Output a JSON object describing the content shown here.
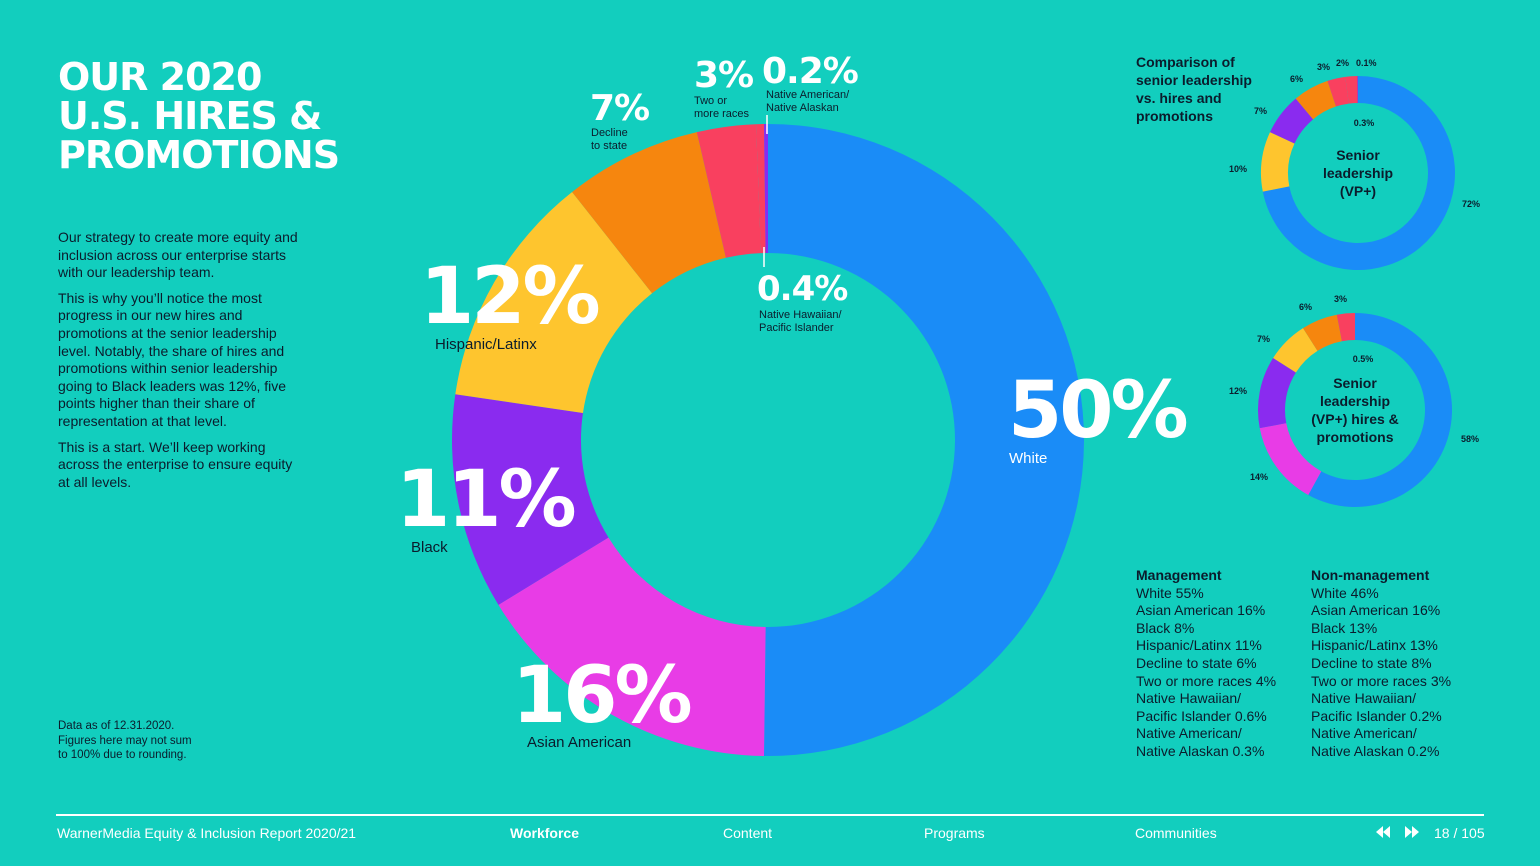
{
  "page": {
    "title_lines": [
      "OUR 2020",
      "U.S. HIRES &",
      "PROMOTIONS"
    ],
    "intro": [
      "Our strategy to create more equity and inclusion across our enterprise starts with our leadership team.",
      "This is why you’ll notice the most progress in our new hires and promotions at the senior leadership level. Notably, the share of hires and promotions within senior leadership going to Black leaders was 12%, five points higher than their share of representation at that level.",
      "This is a start. We’ll keep working across the enterprise to ensure equity at all levels."
    ],
    "note": [
      "Data as of 12.31.2020.",
      "Figures here may not sum",
      "to 100% due to rounding."
    ]
  },
  "colors": {
    "background": "#12CEBE",
    "white_cat": "#1A8CF7",
    "asian": "#E83CE6",
    "black": "#8A2BEF",
    "hispanic": "#FEC52E",
    "decline": "#F6860E",
    "two_or_more": "#F9405F",
    "native_american": "#8A2BEF",
    "native_hawaiian": "#F9405F"
  },
  "chart_data": [
    {
      "type": "pie",
      "variant": "donut",
      "series": [
        {
          "label": "White",
          "value": 50,
          "display": "50%"
        },
        {
          "label": "Asian American",
          "value": 16,
          "display": "16%"
        },
        {
          "label": "Black",
          "value": 11,
          "display": "11%"
        },
        {
          "label": "Hispanic/Latinx",
          "value": 12,
          "display": "12%"
        },
        {
          "label": "Decline to state",
          "value": 7,
          "display": "7%"
        },
        {
          "label": "Two or more races",
          "value": 3,
          "display": "3%"
        },
        {
          "label": "Native Hawaiian/ Pacific Islander",
          "value": 0.4,
          "display": "0.4%"
        },
        {
          "label": "Native American/ Native Alaskan",
          "value": 0.2,
          "display": "0.2%"
        }
      ]
    },
    {
      "type": "pie",
      "variant": "donut",
      "title": "Senior leadership (VP+)",
      "title_lines": [
        "Senior",
        "leadership",
        "(VP+)"
      ],
      "heading_lines": [
        "Comparison of",
        "senior leadership",
        "vs. hires and",
        "promotions"
      ],
      "series": [
        {
          "label": "White",
          "value": 72,
          "display": "72%"
        },
        {
          "label": "Asian American",
          "value": 0,
          "display": ""
        },
        {
          "label": "Hispanic/Latinx",
          "value": 10,
          "display": "10%"
        },
        {
          "label": "Black",
          "value": 7,
          "display": "7%"
        },
        {
          "label": "Decline to state",
          "value": 6,
          "display": "6%"
        },
        {
          "label": "Two or more races",
          "value": 3,
          "display": "3%"
        },
        {
          "label": "Native Hawaiian/ Pacific Islander",
          "value": 2,
          "display": "2%"
        },
        {
          "label": "Native American/ Native Alaskan",
          "value": 0.1,
          "display": "0.1%"
        }
      ],
      "inner_note": "0.3%"
    },
    {
      "type": "pie",
      "variant": "donut",
      "title": "Senior leadership (VP+) hires & promotions",
      "title_lines": [
        "Senior",
        "leadership",
        "(VP+) hires &",
        "promotions"
      ],
      "series": [
        {
          "label": "White",
          "value": 58,
          "display": "58%"
        },
        {
          "label": "Asian American",
          "value": 14,
          "display": "14%"
        },
        {
          "label": "Black",
          "value": 12,
          "display": "12%"
        },
        {
          "label": "Hispanic/Latinx",
          "value": 7,
          "display": "7%"
        },
        {
          "label": "Decline to state",
          "value": 6,
          "display": "6%"
        },
        {
          "label": "Two or more races",
          "value": 3,
          "display": "3%"
        }
      ],
      "inner_note": "0.5%"
    }
  ],
  "main_labels": {
    "p50": "50%",
    "white": "White",
    "p16": "16%",
    "asian": "Asian American",
    "p11": "11%",
    "black": "Black",
    "p12": "12%",
    "hispanic": "Hispanic/Latinx",
    "p7": "7%",
    "decline": [
      "Decline",
      "to state"
    ],
    "p3": "3%",
    "two": [
      "Two or",
      "more races"
    ],
    "p02": "0.2%",
    "native_am": [
      "Native American/",
      "Native Alaskan"
    ],
    "p04": "0.4%",
    "native_hw": [
      "Native Hawaiian/",
      "Pacific Islander"
    ]
  },
  "small1_labels": {
    "p72": "72%",
    "p10": "10%",
    "p7": "7%",
    "p6": "6%",
    "p3": "3%",
    "p2": "2%",
    "p01": "0.1%",
    "inner": "0.3%"
  },
  "small2_labels": {
    "p58": "58%",
    "p14": "14%",
    "p12": "12%",
    "p7": "7%",
    "p6": "6%",
    "p3": "3%",
    "inner": "0.5%"
  },
  "legend": {
    "management": {
      "heading": "Management",
      "lines": [
        "White 55%",
        "Asian American 16%",
        "Black 8%",
        "Hispanic/Latinx 11%",
        "Decline to state 6%",
        "Two or more races 4%",
        "Native Hawaiian/",
        "Pacific Islander 0.6%",
        "Native American/",
        "Native Alaskan 0.3%"
      ]
    },
    "non_management": {
      "heading": "Non-management",
      "lines": [
        "White 46%",
        "Asian American 16%",
        "Black 13%",
        "Hispanic/Latinx 13%",
        "Decline to state 8%",
        "Two or more races 3%",
        "Native Hawaiian/",
        "Pacific Islander 0.2%",
        "Native American/",
        "Native Alaskan 0.2%"
      ]
    }
  },
  "footer": {
    "report": "WarnerMedia Equity & Inclusion Report 2020/21",
    "nav": [
      "Workforce",
      "Content",
      "Programs",
      "Communities"
    ],
    "prev_icon": "rewind-icon",
    "next_icon": "fast-forward-icon",
    "page": "18 / 105"
  }
}
